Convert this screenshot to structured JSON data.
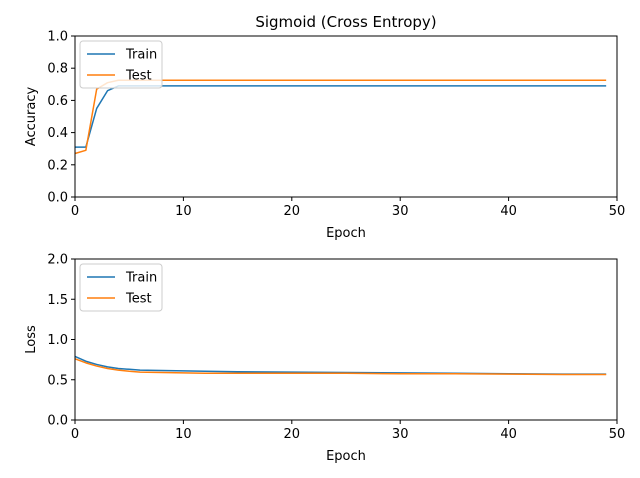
{
  "chart_data": [
    {
      "type": "line",
      "title": "Sigmoid (Cross Entropy)",
      "xlabel": "Epoch",
      "ylabel": "Accuracy",
      "xlim": [
        0,
        50
      ],
      "ylim": [
        0,
        1.0
      ],
      "xticks": [
        "0",
        "10",
        "20",
        "30",
        "40",
        "50"
      ],
      "yticks": [
        "0.0",
        "0.2",
        "0.4",
        "0.6",
        "0.8",
        "1.0"
      ],
      "legend_position": "top-left",
      "grid": false,
      "series": [
        {
          "name": "Train",
          "color": "#1f77b4",
          "x": [
            0,
            1,
            2,
            3,
            4,
            5,
            6,
            7,
            8,
            9,
            10,
            12,
            15,
            20,
            25,
            30,
            35,
            40,
            45,
            49
          ],
          "y": [
            0.31,
            0.31,
            0.55,
            0.66,
            0.69,
            0.69,
            0.69,
            0.69,
            0.69,
            0.69,
            0.69,
            0.69,
            0.69,
            0.69,
            0.69,
            0.69,
            0.69,
            0.69,
            0.69,
            0.69
          ]
        },
        {
          "name": "Test",
          "color": "#ff7f0e",
          "x": [
            0,
            1,
            2,
            3,
            4,
            5,
            6,
            7,
            8,
            9,
            10,
            12,
            15,
            20,
            25,
            30,
            35,
            40,
            45,
            49
          ],
          "y": [
            0.27,
            0.29,
            0.67,
            0.71,
            0.725,
            0.725,
            0.725,
            0.725,
            0.725,
            0.725,
            0.725,
            0.725,
            0.725,
            0.725,
            0.725,
            0.725,
            0.725,
            0.725,
            0.725,
            0.725
          ]
        }
      ]
    },
    {
      "type": "line",
      "title": "",
      "xlabel": "Epoch",
      "ylabel": "Loss",
      "xlim": [
        0,
        50
      ],
      "ylim": [
        0,
        2.0
      ],
      "xticks": [
        "0",
        "10",
        "20",
        "30",
        "40",
        "50"
      ],
      "yticks": [
        "0.0",
        "0.5",
        "1.0",
        "1.5",
        "2.0"
      ],
      "legend_position": "top-left",
      "grid": false,
      "series": [
        {
          "name": "Train",
          "color": "#1f77b4",
          "x": [
            0,
            1,
            2,
            3,
            4,
            5,
            6,
            8,
            10,
            12,
            15,
            20,
            25,
            30,
            35,
            40,
            45,
            49
          ],
          "y": [
            0.79,
            0.73,
            0.69,
            0.66,
            0.64,
            0.63,
            0.62,
            0.615,
            0.61,
            0.605,
            0.6,
            0.595,
            0.59,
            0.585,
            0.58,
            0.575,
            0.57,
            0.57
          ]
        },
        {
          "name": "Test",
          "color": "#ff7f0e",
          "x": [
            0,
            1,
            2,
            3,
            4,
            5,
            6,
            8,
            10,
            12,
            15,
            20,
            25,
            30,
            35,
            40,
            45,
            49
          ],
          "y": [
            0.76,
            0.71,
            0.67,
            0.64,
            0.62,
            0.605,
            0.595,
            0.59,
            0.585,
            0.58,
            0.58,
            0.58,
            0.58,
            0.575,
            0.575,
            0.57,
            0.565,
            0.565
          ]
        }
      ]
    }
  ]
}
